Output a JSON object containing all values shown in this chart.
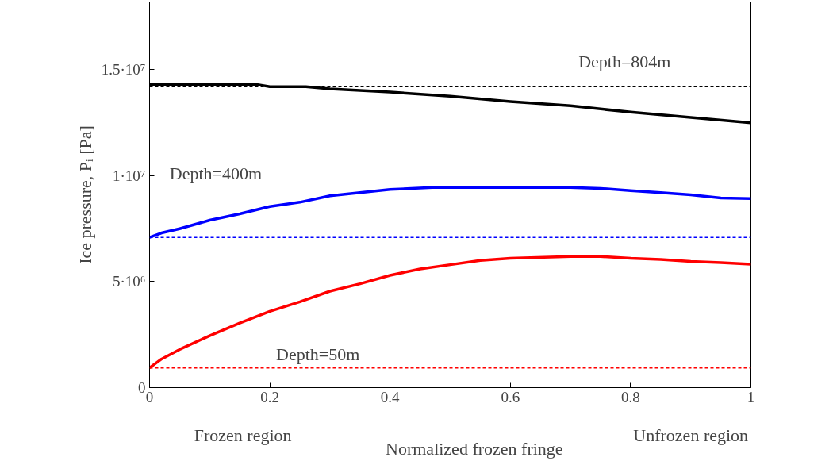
{
  "chart_data": {
    "type": "line",
    "xlabel": "Normalized frozen fringe",
    "ylabel": "Ice pressure, Pᵢ [Pa]",
    "xlim": [
      0,
      1
    ],
    "ylim": [
      0,
      18200000
    ],
    "xticks": [
      0,
      0.2,
      0.4,
      0.6,
      0.8,
      1
    ],
    "yticks": [
      0,
      {
        "value": 5000000,
        "label": "5·10⁶"
      },
      {
        "value": 10000000,
        "label": "1·10⁷"
      },
      {
        "value": 15000000,
        "label": "1.5·10⁷"
      }
    ],
    "grid": false,
    "marker": "none",
    "line_style": "solid",
    "series": [
      {
        "color": "#000000",
        "x": [
          0,
          0.18,
          0.2,
          0.26,
          0.3,
          0.4,
          0.5,
          0.6,
          0.7,
          0.8,
          0.9,
          1
        ],
        "values": [
          14300000,
          14300000,
          14200000,
          14200000,
          14100000,
          13950000,
          13750000,
          13500000,
          13300000,
          13000000,
          12750000,
          12500000
        ]
      },
      {
        "color": "#0000ff",
        "x": [
          0,
          0.02,
          0.05,
          0.1,
          0.15,
          0.2,
          0.25,
          0.3,
          0.35,
          0.4,
          0.47,
          0.6,
          0.7,
          0.75,
          0.8,
          0.85,
          0.9,
          0.95,
          1
        ],
        "values": [
          7090000,
          7300000,
          7500000,
          7900000,
          8200000,
          8550000,
          8750000,
          9050000,
          9200000,
          9350000,
          9450000,
          9450000,
          9450000,
          9400000,
          9300000,
          9200000,
          9100000,
          8950000,
          8920000
        ]
      },
      {
        "color": "#ff0000",
        "x": [
          0,
          0.02,
          0.05,
          0.1,
          0.15,
          0.2,
          0.25,
          0.3,
          0.35,
          0.4,
          0.45,
          0.5,
          0.55,
          0.6,
          0.7,
          0.75,
          0.8,
          0.85,
          0.9,
          0.95,
          1
        ],
        "values": [
          930000,
          1350000,
          1800000,
          2450000,
          3050000,
          3600000,
          4050000,
          4550000,
          4900000,
          5300000,
          5600000,
          5800000,
          6000000,
          6100000,
          6190000,
          6190000,
          6100000,
          6050000,
          5950000,
          5900000,
          5820000
        ]
      }
    ],
    "ref_lines": [
      {
        "axis": "y",
        "value": 14200000,
        "color": "#000000",
        "line_style": "dashed"
      },
      {
        "axis": "y",
        "value": 7090000,
        "color": "#0000ff",
        "line_style": "dashed"
      },
      {
        "axis": "y",
        "value": 930000,
        "color": "#ff0000",
        "line_style": "dashed"
      }
    ],
    "annotations": [
      "Depth=804m",
      "Depth=400m",
      "Depth=50m",
      "Frozen region",
      "Unfrozen region"
    ]
  }
}
